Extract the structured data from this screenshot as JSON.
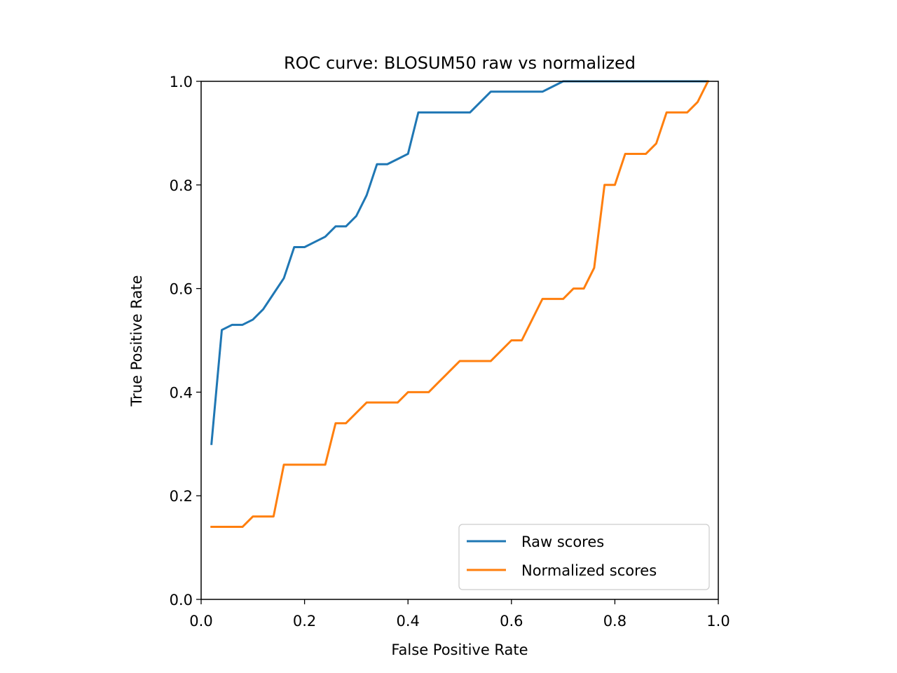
{
  "chart_data": {
    "type": "line",
    "title": "ROC curve: BLOSUM50 raw vs normalized",
    "xlabel": "False Positive Rate",
    "ylabel": "True Positive Rate",
    "xlim": [
      0,
      1
    ],
    "ylim": [
      0,
      1
    ],
    "xticks": [
      "0.0",
      "0.2",
      "0.4",
      "0.6",
      "0.8",
      "1.0"
    ],
    "yticks": [
      "0.0",
      "0.2",
      "0.4",
      "0.6",
      "0.8",
      "1.0"
    ],
    "grid": false,
    "legend_position": "lower-right",
    "series": [
      {
        "name": "Raw scores",
        "color": "#1f77b4",
        "x": [
          0.02,
          0.04,
          0.06,
          0.08,
          0.1,
          0.12,
          0.14,
          0.16,
          0.18,
          0.2,
          0.22,
          0.24,
          0.26,
          0.28,
          0.3,
          0.32,
          0.34,
          0.36,
          0.38,
          0.4,
          0.42,
          0.44,
          0.46,
          0.48,
          0.5,
          0.52,
          0.54,
          0.56,
          0.58,
          0.6,
          0.62,
          0.64,
          0.66,
          0.68,
          0.7,
          0.72,
          0.74,
          0.76,
          0.78,
          0.8,
          0.82,
          0.84,
          0.86,
          0.88,
          0.9,
          0.92,
          0.94,
          0.96,
          0.98
        ],
        "y": [
          0.3,
          0.52,
          0.53,
          0.53,
          0.54,
          0.56,
          0.59,
          0.62,
          0.68,
          0.68,
          0.69,
          0.7,
          0.72,
          0.72,
          0.74,
          0.78,
          0.84,
          0.84,
          0.85,
          0.86,
          0.94,
          0.94,
          0.94,
          0.94,
          0.94,
          0.94,
          0.96,
          0.98,
          0.98,
          0.98,
          0.98,
          0.98,
          0.98,
          0.99,
          1.0,
          1.0,
          1.0,
          1.0,
          1.0,
          1.0,
          1.0,
          1.0,
          1.0,
          1.0,
          1.0,
          1.0,
          1.0,
          1.0,
          1.0
        ]
      },
      {
        "name": "Normalized scores",
        "color": "#ff7f0e",
        "x": [
          0.02,
          0.04,
          0.06,
          0.08,
          0.1,
          0.12,
          0.14,
          0.16,
          0.18,
          0.2,
          0.22,
          0.24,
          0.26,
          0.28,
          0.3,
          0.32,
          0.34,
          0.36,
          0.38,
          0.4,
          0.42,
          0.44,
          0.46,
          0.48,
          0.5,
          0.52,
          0.54,
          0.56,
          0.58,
          0.6,
          0.62,
          0.64,
          0.66,
          0.68,
          0.7,
          0.72,
          0.74,
          0.76,
          0.78,
          0.8,
          0.82,
          0.84,
          0.86,
          0.88,
          0.9,
          0.92,
          0.94,
          0.96,
          0.98
        ],
        "y": [
          0.14,
          0.14,
          0.14,
          0.14,
          0.16,
          0.16,
          0.16,
          0.26,
          0.26,
          0.26,
          0.26,
          0.26,
          0.34,
          0.34,
          0.36,
          0.38,
          0.38,
          0.38,
          0.38,
          0.4,
          0.4,
          0.4,
          0.42,
          0.44,
          0.46,
          0.46,
          0.46,
          0.46,
          0.48,
          0.5,
          0.5,
          0.54,
          0.58,
          0.58,
          0.58,
          0.6,
          0.6,
          0.64,
          0.8,
          0.8,
          0.86,
          0.86,
          0.86,
          0.88,
          0.94,
          0.94,
          0.94,
          0.96,
          1.0
        ]
      }
    ]
  }
}
